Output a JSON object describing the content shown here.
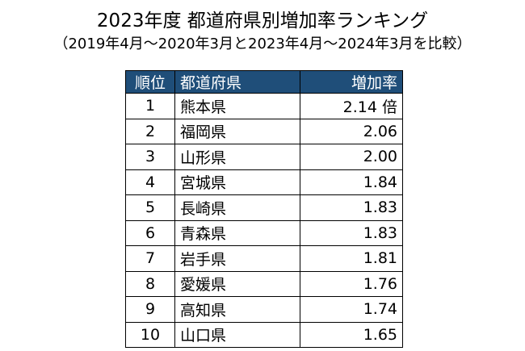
{
  "header": {
    "title": "2023年度 都道府県別増加率ランキング",
    "subtitle": "（2019年4月～2020年3月と2023年4月～2024年3月を比較）"
  },
  "table": {
    "columns": [
      "順位",
      "都道府県",
      "増加率"
    ],
    "rows": [
      [
        1,
        "熊本県",
        "2.14 倍"
      ],
      [
        2,
        "福岡県",
        "2.06"
      ],
      [
        3,
        "山形県",
        "2.00"
      ],
      [
        4,
        "宮城県",
        "1.84"
      ],
      [
        5,
        "長崎県",
        "1.83"
      ],
      [
        6,
        "青森県",
        "1.83"
      ],
      [
        7,
        "岩手県",
        "1.81"
      ],
      [
        8,
        "愛媛県",
        "1.76"
      ],
      [
        9,
        "高知県",
        "1.74"
      ],
      [
        10,
        "山口県",
        "1.65"
      ]
    ]
  }
}
